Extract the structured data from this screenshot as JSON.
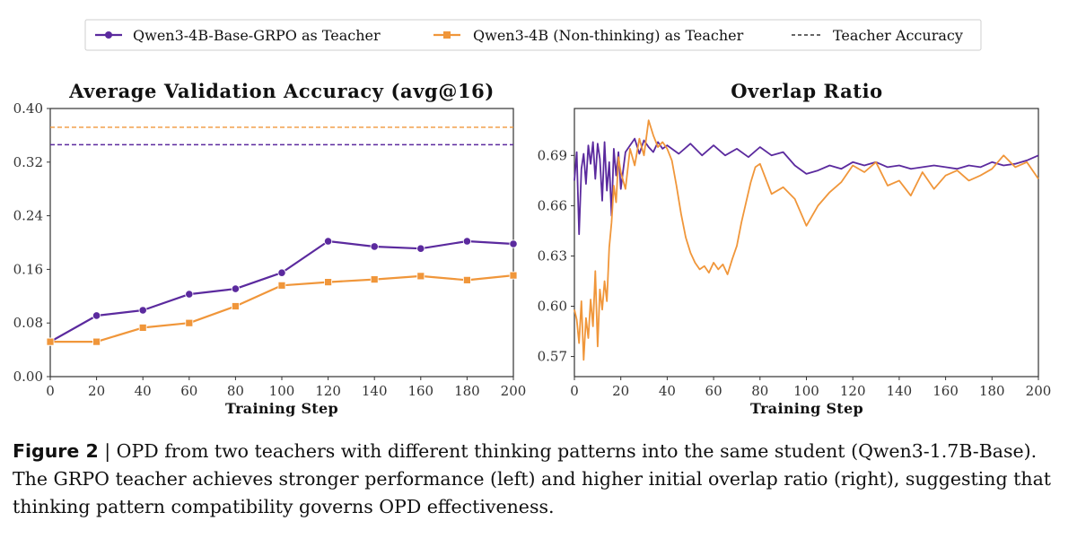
{
  "legend": {
    "items": [
      {
        "label": "Qwen3-4B-Base-GRPO as Teacher",
        "color": "#5b2a9e",
        "marker": "circle",
        "style": "solid"
      },
      {
        "label": "Qwen3-4B (Non-thinking) as Teacher",
        "color": "#f0963a",
        "marker": "square",
        "style": "solid"
      },
      {
        "label": "Teacher Accuracy",
        "color": "#333333",
        "marker": "none",
        "style": "dashed"
      }
    ]
  },
  "chart_data": [
    {
      "type": "line",
      "title": "Average Validation Accuracy (avg@16)",
      "xlabel": "Training Step",
      "ylabel": "",
      "xlim": [
        0,
        200
      ],
      "ylim": [
        0,
        0.4
      ],
      "xticks": [
        0,
        20,
        40,
        60,
        80,
        100,
        120,
        140,
        160,
        180,
        200
      ],
      "yticks": [
        "0.00",
        "0.08",
        "0.16",
        "0.24",
        "0.32",
        "0.40"
      ],
      "x": [
        0,
        20,
        40,
        60,
        80,
        100,
        120,
        140,
        160,
        180,
        200
      ],
      "series": [
        {
          "name": "Qwen3-4B-Base-GRPO as Teacher",
          "color": "#5b2a9e",
          "marker": "circle",
          "values": [
            0.052,
            0.091,
            0.099,
            0.123,
            0.131,
            0.155,
            0.202,
            0.194,
            0.191,
            0.202,
            0.198
          ]
        },
        {
          "name": "Qwen3-4B (Non-thinking) as Teacher",
          "color": "#f0963a",
          "marker": "square",
          "values": [
            0.052,
            0.052,
            0.073,
            0.08,
            0.105,
            0.136,
            0.141,
            0.145,
            0.15,
            0.144,
            0.151
          ]
        }
      ],
      "reference_lines": [
        {
          "name": "Teacher Accuracy",
          "series": "Qwen3-4B (Non-thinking) as Teacher",
          "value": 0.372,
          "color": "#f0963a"
        },
        {
          "name": "Teacher Accuracy",
          "series": "Qwen3-4B-Base-GRPO as Teacher",
          "value": 0.346,
          "color": "#5b2a9e"
        }
      ],
      "grid": false
    },
    {
      "type": "line",
      "title": "Overlap Ratio",
      "xlabel": "Training Step",
      "ylabel": "",
      "xlim": [
        0,
        200
      ],
      "ylim": [
        0.558,
        0.718
      ],
      "xticks": [
        0,
        20,
        40,
        60,
        80,
        100,
        120,
        140,
        160,
        180,
        200
      ],
      "yticks": [
        "0.57",
        "0.60",
        "0.63",
        "0.66",
        "0.69"
      ],
      "series": [
        {
          "name": "Qwen3-4B-Base-GRPO as Teacher",
          "color": "#5b2a9e",
          "x": [
            0,
            1,
            2,
            3,
            4,
            5,
            6,
            7,
            8,
            9,
            10,
            11,
            12,
            13,
            14,
            15,
            16,
            17,
            18,
            19,
            20,
            22,
            24,
            26,
            28,
            30,
            32,
            34,
            36,
            38,
            40,
            45,
            50,
            55,
            60,
            65,
            70,
            75,
            80,
            85,
            90,
            95,
            100,
            105,
            110,
            115,
            120,
            125,
            130,
            135,
            140,
            145,
            150,
            155,
            160,
            165,
            170,
            175,
            180,
            185,
            190,
            195,
            200
          ],
          "values": [
            0.675,
            0.692,
            0.643,
            0.682,
            0.691,
            0.673,
            0.696,
            0.685,
            0.698,
            0.676,
            0.697,
            0.688,
            0.663,
            0.698,
            0.669,
            0.686,
            0.654,
            0.694,
            0.678,
            0.692,
            0.67,
            0.692,
            0.696,
            0.7,
            0.691,
            0.699,
            0.695,
            0.692,
            0.698,
            0.694,
            0.696,
            0.691,
            0.697,
            0.69,
            0.696,
            0.69,
            0.694,
            0.689,
            0.695,
            0.69,
            0.692,
            0.684,
            0.679,
            0.681,
            0.684,
            0.682,
            0.686,
            0.684,
            0.686,
            0.683,
            0.684,
            0.682,
            0.683,
            0.684,
            0.683,
            0.682,
            0.684,
            0.683,
            0.686,
            0.684,
            0.685,
            0.687,
            0.69
          ]
        },
        {
          "name": "Qwen3-4B (Non-thinking) as Teacher",
          "color": "#f0963a",
          "x": [
            0,
            1,
            2,
            3,
            4,
            5,
            6,
            7,
            8,
            9,
            10,
            11,
            12,
            13,
            14,
            15,
            16,
            17,
            18,
            19,
            20,
            22,
            24,
            26,
            28,
            30,
            32,
            34,
            36,
            38,
            40,
            42,
            44,
            46,
            48,
            50,
            52,
            54,
            56,
            58,
            60,
            62,
            64,
            66,
            68,
            70,
            72,
            74,
            76,
            78,
            80,
            85,
            90,
            95,
            100,
            105,
            110,
            115,
            120,
            125,
            130,
            135,
            140,
            145,
            150,
            155,
            160,
            165,
            170,
            175,
            180,
            185,
            190,
            195,
            200
          ],
          "values": [
            0.598,
            0.592,
            0.578,
            0.603,
            0.568,
            0.593,
            0.581,
            0.604,
            0.588,
            0.621,
            0.576,
            0.61,
            0.598,
            0.615,
            0.603,
            0.635,
            0.65,
            0.672,
            0.662,
            0.689,
            0.68,
            0.67,
            0.694,
            0.684,
            0.7,
            0.69,
            0.711,
            0.702,
            0.695,
            0.698,
            0.694,
            0.687,
            0.672,
            0.655,
            0.641,
            0.632,
            0.626,
            0.622,
            0.624,
            0.62,
            0.626,
            0.622,
            0.625,
            0.619,
            0.628,
            0.636,
            0.65,
            0.662,
            0.674,
            0.683,
            0.685,
            0.667,
            0.671,
            0.664,
            0.648,
            0.66,
            0.668,
            0.674,
            0.684,
            0.68,
            0.686,
            0.672,
            0.675,
            0.666,
            0.68,
            0.67,
            0.678,
            0.681,
            0.675,
            0.678,
            0.682,
            0.69,
            0.683,
            0.686,
            0.676
          ]
        }
      ],
      "grid": false
    }
  ],
  "caption": {
    "label": "Figure 2",
    "text": " | OPD from two teachers with different thinking patterns into the same student (Qwen3-1.7B-Base). The GRPO teacher achieves stronger performance (left) and higher initial overlap ratio (right), suggesting that thinking pattern compatibility governs OPD effectiveness."
  }
}
